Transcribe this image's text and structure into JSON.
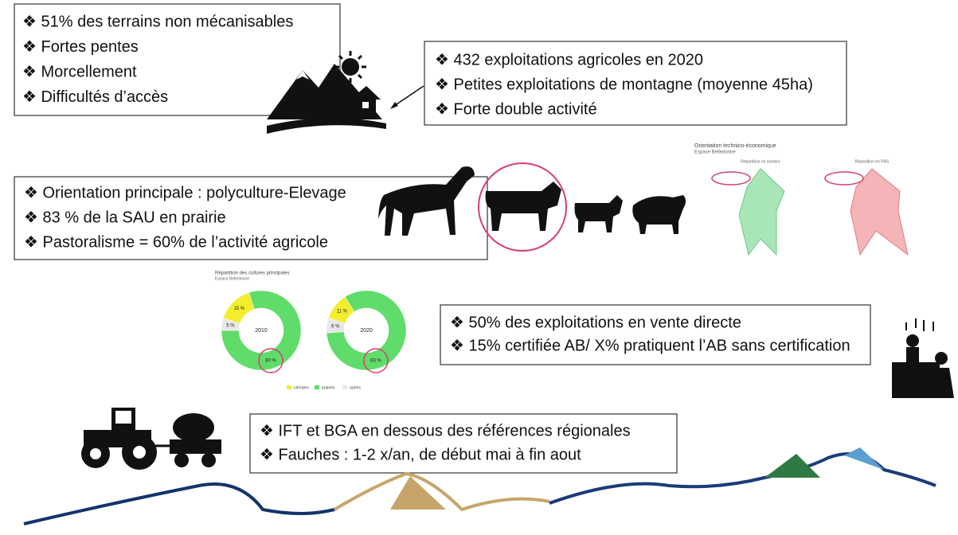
{
  "boxes": [
    {
      "items": [
        "❖ 51% des terrains non mécanisables",
        "❖ Fortes pentes",
        "❖ Morcellement",
        "❖ Difficultés d’accès"
      ]
    },
    {
      "items": [
        "❖ 432 exploitations agricoles en 2020",
        "❖ Petites exploitations de montagne (moyenne 45ha)",
        "❖ Forte double activité"
      ]
    },
    {
      "items": [
        "❖ Orientation principale : polyculture-Elevage",
        "❖ 83 % de la SAU en prairie",
        "❖ Pastoralisme = 60% de l’activité agricole"
      ]
    },
    {
      "items": [
        "❖ 50% des exploitations en vente directe",
        "❖ 15% certifiée AB/ X% pratiquent l’AB sans certification"
      ]
    },
    {
      "items": [
        "❖ IFT et BGA en dessous des références régionales",
        "❖ Fauches : 1-2 x/an, de début mai à fin aout"
      ]
    }
  ],
  "radar_figure": {
    "title": "Orientation technico-économique",
    "subtitle": "Espace Belledonne",
    "left_label": "Répartition en nombre",
    "right_label": "Répartition en PBS"
  },
  "donut_figure": {
    "title": "Répartition des cultures principales",
    "subtitle": "Espace Belledonne"
  },
  "chart_data": [
    {
      "type": "donut",
      "title": "2010",
      "categories": [
        "céréales",
        "prairies",
        "autres"
      ],
      "values": [
        15,
        80,
        5
      ],
      "value_labels": [
        "15 %",
        "80 %",
        "5 %"
      ],
      "colors": [
        "#f2ee2e",
        "#5fdc6a",
        "#e8e8e8"
      ]
    },
    {
      "type": "donut",
      "title": "2020",
      "categories": [
        "céréales",
        "prairies",
        "autres"
      ],
      "values": [
        11,
        83,
        6
      ],
      "value_labels": [
        "11 %",
        "83 %",
        "6 %"
      ],
      "colors": [
        "#f2ee2e",
        "#5fdc6a",
        "#e8e8e8"
      ]
    }
  ]
}
